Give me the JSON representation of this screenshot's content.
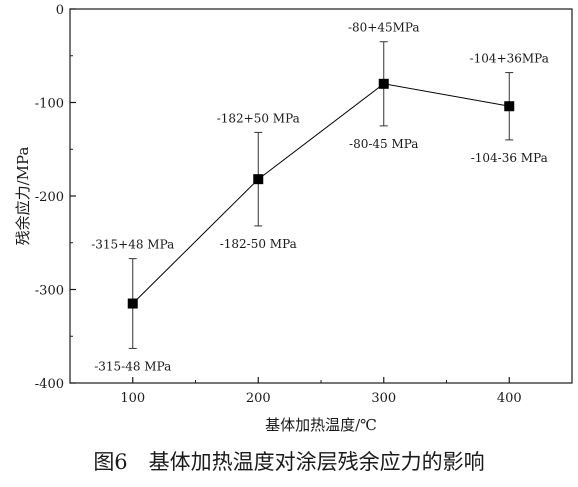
{
  "chart_data": {
    "type": "line",
    "title": "",
    "xlabel": "基体加热温度/℃",
    "ylabel": "残余应力/MPa",
    "x": [
      100,
      200,
      300,
      400
    ],
    "xlim": [
      50,
      450
    ],
    "xticks": [
      100,
      200,
      300,
      400
    ],
    "ylim": [
      -400,
      0
    ],
    "yticks": [
      0,
      -100,
      -200,
      -300,
      -400
    ],
    "series": [
      {
        "values": [
          -315,
          -182,
          -80,
          -104
        ],
        "error_plus": [
          48,
          50,
          45,
          36
        ],
        "error_minus": [
          48,
          50,
          45,
          36
        ],
        "marker": "square",
        "color": "#000000"
      }
    ],
    "annotations": [
      {
        "upper": "-315+48 MPa",
        "lower": "-315-48 MPa"
      },
      {
        "upper": "-182+50 MPa",
        "lower": "-182-50 MPa"
      },
      {
        "upper": "-80+45MPa",
        "lower": "-80-45 MPa"
      },
      {
        "upper": "-104+36MPa",
        "lower": "-104-36 MPa"
      }
    ],
    "grid": false,
    "legend": "none"
  },
  "caption": "图6　基体加热温度对涂层残余应力的影响"
}
